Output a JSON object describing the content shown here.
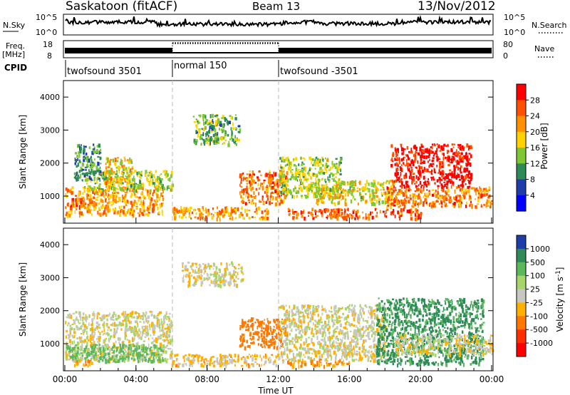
{
  "header": {
    "title": "Saskatoon (fitACF)",
    "beam": "Beam 13",
    "date": "13/Nov/2012"
  },
  "noise_panel": {
    "left_label": "N.Sky",
    "right_label": "N.Search",
    "left_ticks": [
      "10^5",
      "10^0"
    ],
    "right_ticks": [
      "10^5",
      "10^0"
    ]
  },
  "freq_panel": {
    "left_label_1": "Freq.",
    "left_label_2": "[MHz]",
    "left_ticks": [
      "18",
      "8"
    ],
    "right_ticks": [
      "80",
      "0"
    ],
    "right_label": "Nave"
  },
  "cpid": {
    "label": "CPID",
    "segments": [
      {
        "name": "twofsound 3501",
        "start": "00:00",
        "end": "06:00"
      },
      {
        "name": "normal 150",
        "start": "06:00",
        "end": "12:00"
      },
      {
        "name": "twofsound -3501",
        "start": "12:00",
        "end": "24:00"
      }
    ]
  },
  "power_colorbar": {
    "label": "Power [dB]",
    "ticks": [
      "28",
      "24",
      "20",
      "16",
      "12",
      "8",
      "4"
    ],
    "colors": [
      "#ff0000",
      "#ff5000",
      "#ff9000",
      "#ffd200",
      "#7fc832",
      "#2e8b57",
      "#1e3caa",
      "#0000ff"
    ]
  },
  "velocity_colorbar": {
    "label": "Velocity [m s",
    "label_sup": "-1",
    "label_end": "]",
    "ticks": [
      "1000",
      "500",
      "100",
      "25",
      "-25",
      "-100",
      "-500",
      "-1000"
    ],
    "colors": [
      "#1e3caa",
      "#2e8b57",
      "#5cb85c",
      "#a8d56a",
      "#c8c8c0",
      "#ffb000",
      "#ff7800",
      "#ff3000",
      "#ff0000"
    ]
  },
  "x_axis": {
    "label": "Time UT",
    "ticks": [
      "00:00",
      "04:00",
      "08:00",
      "12:00",
      "16:00",
      "20:00",
      "00:00"
    ]
  },
  "chart_data": [
    {
      "type": "heatmap",
      "panel": "power",
      "ylabel": "Slant Range [km]",
      "xlabel": "",
      "x_range_hours": [
        0,
        24
      ],
      "ylim": [
        180,
        4500
      ],
      "yticks": [
        "1000",
        "2000",
        "3000",
        "4000"
      ],
      "color_scale_dB": [
        0,
        30
      ],
      "regions": [
        {
          "t0": 0.0,
          "t1": 5.5,
          "r0": 450,
          "r1": 1300,
          "value_dB": 20
        },
        {
          "t0": 0.3,
          "t1": 1.0,
          "r0": 700,
          "r1": 1000,
          "value_dB": 26
        },
        {
          "t0": 1.0,
          "t1": 6.0,
          "r0": 1200,
          "r1": 1800,
          "value_dB": 14
        },
        {
          "t0": 2.2,
          "t1": 3.8,
          "r0": 1400,
          "r1": 2200,
          "value_dB": 18
        },
        {
          "t0": 0.5,
          "t1": 2.0,
          "r0": 1500,
          "r1": 2600,
          "value_dB": 10
        },
        {
          "t0": 6.0,
          "t1": 11.5,
          "r0": 350,
          "r1": 700,
          "value_dB": 20
        },
        {
          "t0": 7.2,
          "t1": 9.8,
          "r0": 2600,
          "r1": 3500,
          "value_dB": 12
        },
        {
          "t0": 9.8,
          "t1": 12.5,
          "r0": 800,
          "r1": 1800,
          "value_dB": 22
        },
        {
          "t0": 12.0,
          "t1": 15.5,
          "r0": 1000,
          "r1": 2200,
          "value_dB": 14
        },
        {
          "t0": 12.5,
          "t1": 20.0,
          "r0": 350,
          "r1": 650,
          "value_dB": 24
        },
        {
          "t0": 14.0,
          "t1": 18.5,
          "r0": 800,
          "r1": 1500,
          "value_dB": 16
        },
        {
          "t0": 18.0,
          "t1": 24.0,
          "r0": 700,
          "r1": 1300,
          "value_dB": 22
        },
        {
          "t0": 18.3,
          "t1": 22.8,
          "r0": 1300,
          "r1": 2600,
          "value_dB": 28
        }
      ]
    },
    {
      "type": "heatmap",
      "panel": "velocity",
      "ylabel": "Slant Range [km]",
      "xlabel": "Time UT",
      "x_range_hours": [
        0,
        24
      ],
      "ylim": [
        180,
        4500
      ],
      "yticks": [
        "1000",
        "2000",
        "3000",
        "4000"
      ],
      "color_scale_ms": [
        -1000,
        1000
      ],
      "regions": [
        {
          "t0": 0.0,
          "t1": 6.0,
          "r0": 500,
          "r1": 2000,
          "value_ms": 0
        },
        {
          "t0": 0.0,
          "t1": 5.5,
          "r0": 500,
          "r1": 1000,
          "value_ms": 150
        },
        {
          "t0": 0.5,
          "t1": 1.5,
          "r0": 350,
          "r1": 550,
          "value_ms": -100
        },
        {
          "t0": 6.0,
          "t1": 12.0,
          "r0": 350,
          "r1": 700,
          "value_ms": -50
        },
        {
          "t0": 6.5,
          "t1": 10.0,
          "r0": 2800,
          "r1": 3500,
          "value_ms": 0
        },
        {
          "t0": 9.8,
          "t1": 12.5,
          "r0": 900,
          "r1": 1800,
          "value_ms": -200
        },
        {
          "t0": 12.0,
          "t1": 18.0,
          "r0": 500,
          "r1": 2200,
          "value_ms": 0
        },
        {
          "t0": 12.5,
          "t1": 16.0,
          "r0": 350,
          "r1": 550,
          "value_ms": -100
        },
        {
          "t0": 17.5,
          "t1": 23.5,
          "r0": 400,
          "r1": 2400,
          "value_ms": 600
        },
        {
          "t0": 18.5,
          "t1": 24.0,
          "r0": 700,
          "r1": 1300,
          "value_ms": 0
        }
      ]
    }
  ]
}
